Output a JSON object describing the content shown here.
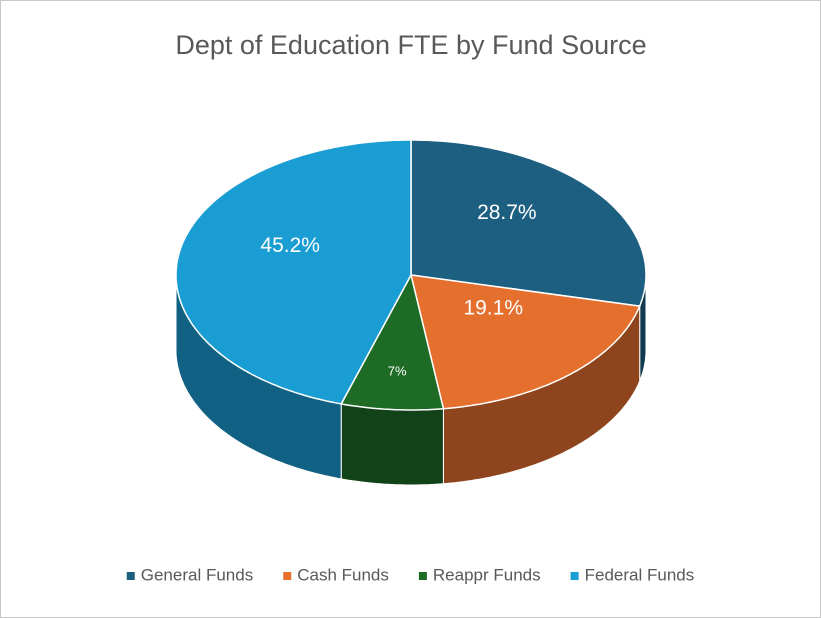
{
  "chart_data": {
    "type": "pie",
    "title": "Dept of Education FTE by Fund Source",
    "categories": [
      "General Funds",
      "Cash Funds",
      "Reappr Funds",
      "Federal Funds"
    ],
    "values": [
      28.7,
      19.1,
      7,
      45.2
    ],
    "value_labels": [
      "28.7%",
      "19.1%",
      "7%",
      "45.2%"
    ],
    "colors": [
      "#1d5f80",
      "#e5702e",
      "#1d6b25",
      "#199dd3"
    ],
    "legend": "bottom"
  }
}
